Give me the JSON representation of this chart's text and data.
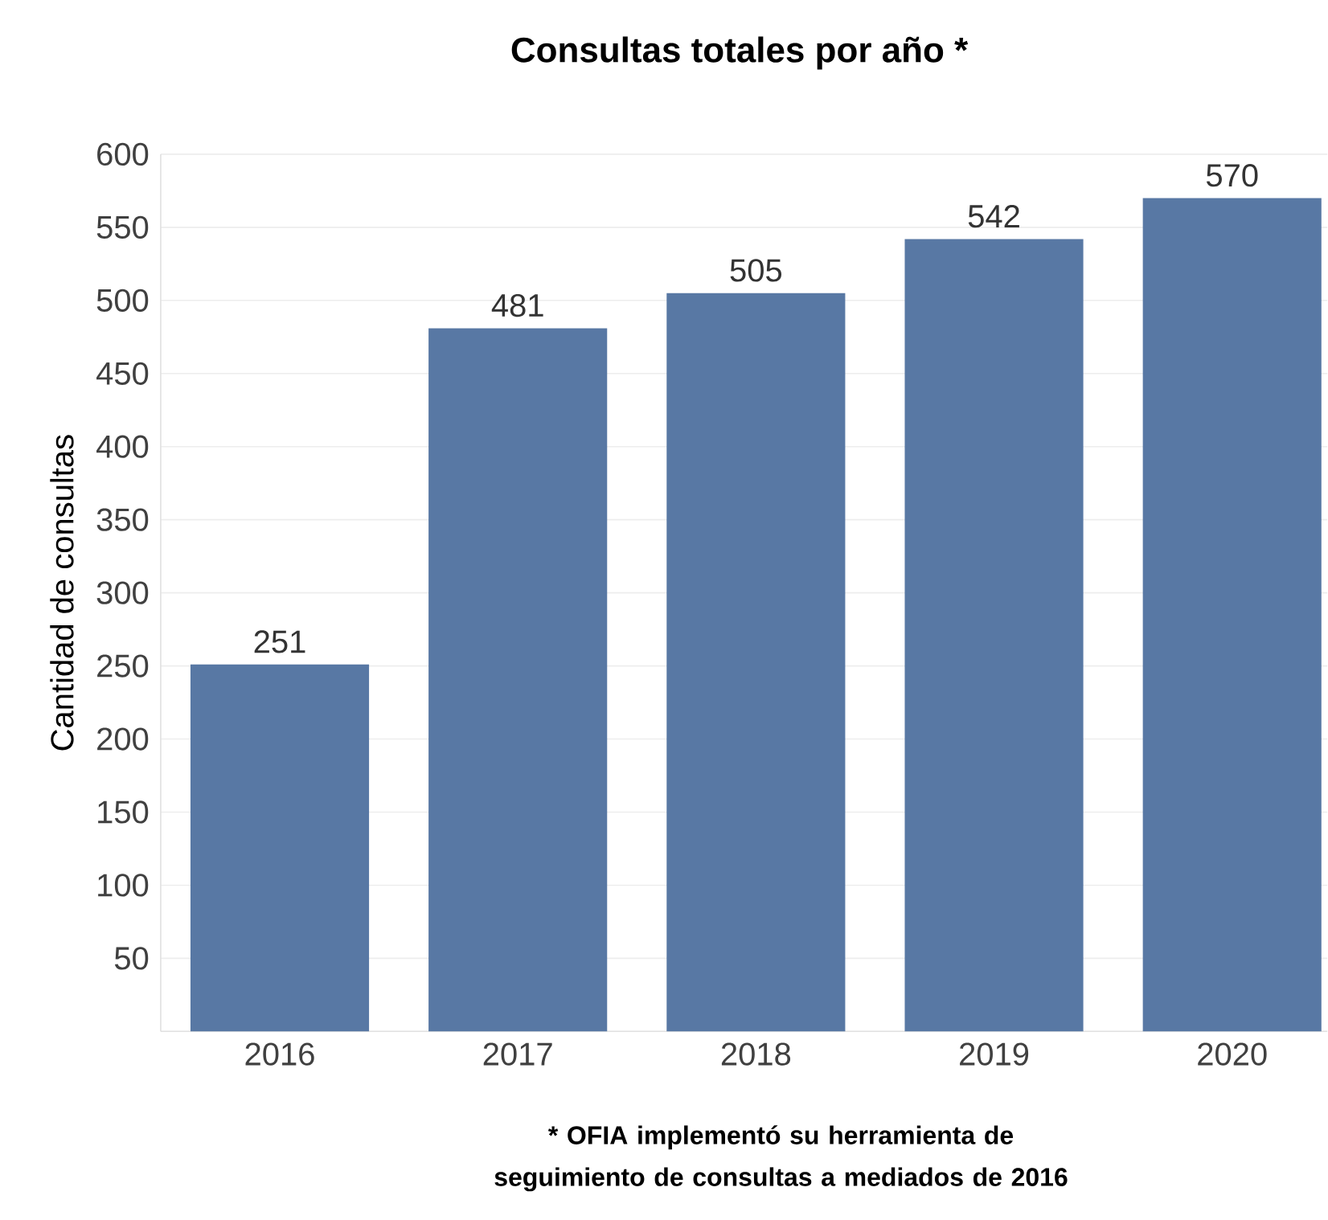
{
  "chart_data": {
    "type": "bar",
    "title": "Consultas totales por año *",
    "ylabel": "Cantidad de consultas",
    "categories": [
      "2016",
      "2017",
      "2018",
      "2019",
      "2020"
    ],
    "values": [
      251,
      481,
      505,
      542,
      570
    ],
    "color": "#5878a4",
    "ylim": [
      0,
      600
    ],
    "yticks": [
      50,
      100,
      150,
      200,
      250,
      300,
      350,
      400,
      450,
      500,
      550,
      600
    ],
    "grid": "y",
    "data_labels": true,
    "annotations": [
      "* OFIA implementó su herramienta de seguimiento de consultas a mediados de 2016"
    ]
  }
}
